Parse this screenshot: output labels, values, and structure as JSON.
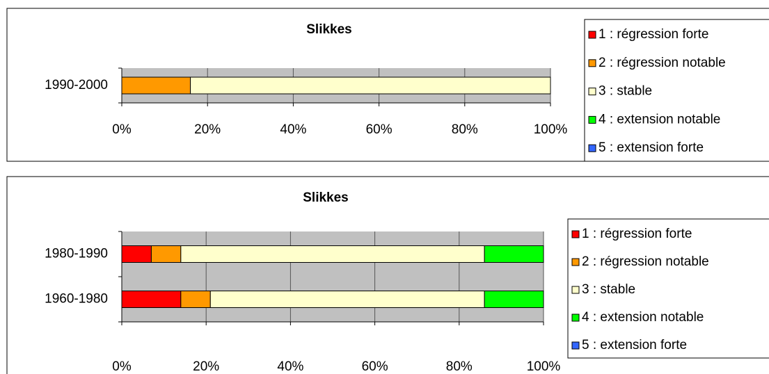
{
  "chart_data": [
    {
      "type": "bar",
      "orientation": "horizontal",
      "stacked": true,
      "title": "Slikkes",
      "categories": [
        "1990-2000"
      ],
      "series": [
        {
          "name": "1 : régression forte",
          "color": "#ff0000",
          "values": [
            0
          ]
        },
        {
          "name": "2 : régression notable",
          "color": "#ff9900",
          "values": [
            16
          ]
        },
        {
          "name": "3 : stable",
          "color": "#ffffcc",
          "values": [
            84
          ]
        },
        {
          "name": "4 : extension notable",
          "color": "#00ff00",
          "values": [
            0
          ]
        },
        {
          "name": "5 : extension forte",
          "color": "#3366ff",
          "values": [
            0
          ]
        }
      ],
      "xlim": [
        0,
        100
      ],
      "xticks": [
        {
          "value": 0,
          "label": "0%"
        },
        {
          "value": 20,
          "label": "20%"
        },
        {
          "value": 40,
          "label": "40%"
        },
        {
          "value": 60,
          "label": "60%"
        },
        {
          "value": 80,
          "label": "80%"
        },
        {
          "value": 100,
          "label": "100%"
        }
      ],
      "grid": true,
      "legend": "right"
    },
    {
      "type": "bar",
      "orientation": "horizontal",
      "stacked": true,
      "title": "Slikkes",
      "categories": [
        "1980-1990",
        "1960-1980"
      ],
      "series": [
        {
          "name": "1 : régression forte",
          "color": "#ff0000",
          "values": [
            7,
            14
          ]
        },
        {
          "name": "2 : régression notable",
          "color": "#ff9900",
          "values": [
            7,
            7
          ]
        },
        {
          "name": "3 : stable",
          "color": "#ffffcc",
          "values": [
            72,
            65
          ]
        },
        {
          "name": "4 : extension notable",
          "color": "#00ff00",
          "values": [
            14,
            14
          ]
        },
        {
          "name": "5 : extension forte",
          "color": "#3366ff",
          "values": [
            0,
            0
          ]
        }
      ],
      "xlim": [
        0,
        100
      ],
      "xticks": [
        {
          "value": 0,
          "label": "0%"
        },
        {
          "value": 20,
          "label": "20%"
        },
        {
          "value": 40,
          "label": "40%"
        },
        {
          "value": 60,
          "label": "60%"
        },
        {
          "value": 80,
          "label": "80%"
        },
        {
          "value": 100,
          "label": "100%"
        }
      ],
      "grid": true,
      "legend": "right"
    }
  ]
}
